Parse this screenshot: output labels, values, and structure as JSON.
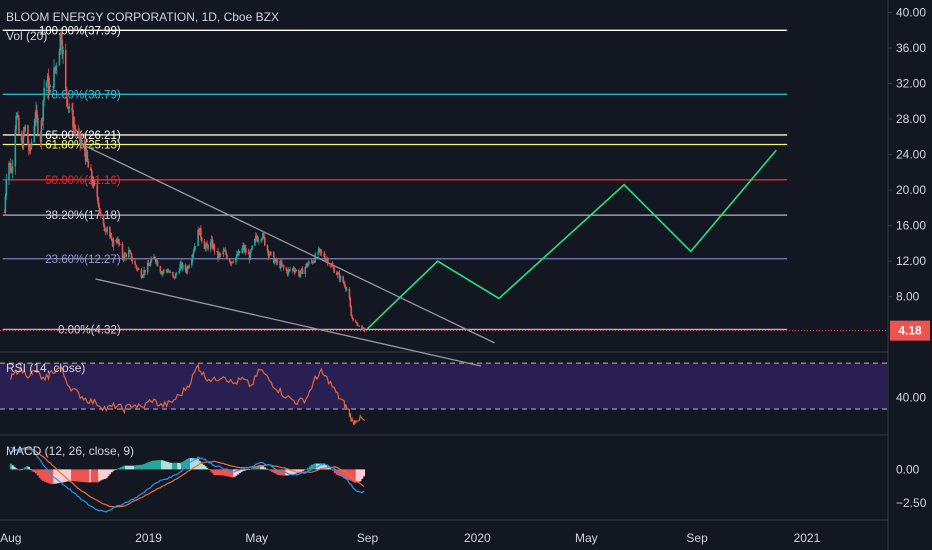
{
  "header": {
    "title": "BLOOM ENERGY CORPORATION, 1D, Cboe BZX",
    "volume_label": "Vol (20)"
  },
  "colors": {
    "background": "#131722",
    "grid": "#363a45",
    "axis_text": "#d1d4dc",
    "up": "#26a69a",
    "down": "#ef5350",
    "projection": "#26e07f",
    "trendline": "#9598a1",
    "price_tag": "#ef5350",
    "rsi_band": "#2a1f52",
    "rsi_line": "#e0683a",
    "macd_line": "#2196f3",
    "signal_line": "#ef6c3a"
  },
  "chart_data": [
    {
      "type": "candlestick",
      "panel": "price",
      "y_axis_ticks": [
        "40.00",
        "36.00",
        "32.00",
        "28.00",
        "24.00",
        "20.00",
        "16.00",
        "12.00",
        "8.00"
      ],
      "y_ticks_values": [
        40,
        36,
        32,
        28,
        24,
        20,
        16,
        12,
        8
      ],
      "ylim": [
        2.0,
        40.5
      ],
      "x_axis_ticks": [
        {
          "label": "Aug",
          "date": "2018-08-01"
        },
        {
          "label": "2019",
          "date": "2019-01-01"
        },
        {
          "label": "May",
          "date": "2019-05-01"
        },
        {
          "label": "Sep",
          "date": "2019-09-01"
        },
        {
          "label": "2020",
          "date": "2020-01-01"
        },
        {
          "label": "May",
          "date": "2020-05-01"
        },
        {
          "label": "Sep",
          "date": "2020-09-01"
        },
        {
          "label": "2021",
          "date": "2021-01-01"
        }
      ],
      "xlim": [
        "2018-07-20",
        "2021-04-01"
      ],
      "last_price": "4.18",
      "last_price_value": 4.18,
      "price_path": [
        [
          "2018-07-25",
          17.5
        ],
        [
          "2018-07-28",
          24.0
        ],
        [
          "2018-08-02",
          22.0
        ],
        [
          "2018-08-07",
          29.0
        ],
        [
          "2018-08-12",
          24.5
        ],
        [
          "2018-08-17",
          27.0
        ],
        [
          "2018-08-22",
          24.0
        ],
        [
          "2018-08-28",
          28.5
        ],
        [
          "2018-09-03",
          26.0
        ],
        [
          "2018-09-08",
          33.0
        ],
        [
          "2018-09-14",
          31.0
        ],
        [
          "2018-09-20",
          34.0
        ],
        [
          "2018-09-26",
          37.99
        ],
        [
          "2018-10-01",
          31.0
        ],
        [
          "2018-10-06",
          29.0
        ],
        [
          "2018-10-11",
          27.0
        ],
        [
          "2018-10-16",
          25.5
        ],
        [
          "2018-10-21",
          25.0
        ],
        [
          "2018-10-26",
          22.5
        ],
        [
          "2018-11-01",
          20.5
        ],
        [
          "2018-11-06",
          19.0
        ],
        [
          "2018-11-11",
          15.5
        ],
        [
          "2018-11-16",
          16.0
        ],
        [
          "2018-11-21",
          14.0
        ],
        [
          "2018-11-27",
          14.5
        ],
        [
          "2018-12-03",
          12.5
        ],
        [
          "2018-12-10",
          13.0
        ],
        [
          "2018-12-17",
          11.5
        ],
        [
          "2018-12-24",
          10.5
        ],
        [
          "2019-01-01",
          11.5
        ],
        [
          "2019-01-08",
          12.5
        ],
        [
          "2019-01-15",
          10.8
        ],
        [
          "2019-01-22",
          11.0
        ],
        [
          "2019-01-29",
          10.0
        ],
        [
          "2019-02-05",
          11.5
        ],
        [
          "2019-02-12",
          11.0
        ],
        [
          "2019-02-19",
          13.0
        ],
        [
          "2019-02-26",
          15.5
        ],
        [
          "2019-03-05",
          13.5
        ],
        [
          "2019-03-12",
          14.0
        ],
        [
          "2019-03-19",
          12.5
        ],
        [
          "2019-03-26",
          13.0
        ],
        [
          "2019-04-02",
          12.0
        ],
        [
          "2019-04-09",
          12.5
        ],
        [
          "2019-04-16",
          13.5
        ],
        [
          "2019-04-23",
          12.5
        ],
        [
          "2019-04-30",
          14.5
        ],
        [
          "2019-05-07",
          15.0
        ],
        [
          "2019-05-14",
          13.0
        ],
        [
          "2019-05-21",
          12.0
        ],
        [
          "2019-05-28",
          11.5
        ],
        [
          "2019-06-04",
          10.8
        ],
        [
          "2019-06-11",
          11.2
        ],
        [
          "2019-06-18",
          10.5
        ],
        [
          "2019-06-25",
          11.5
        ],
        [
          "2019-07-02",
          12.0
        ],
        [
          "2019-07-09",
          13.0
        ],
        [
          "2019-07-16",
          12.5
        ],
        [
          "2019-07-23",
          11.5
        ],
        [
          "2019-07-30",
          10.5
        ],
        [
          "2019-08-06",
          9.5
        ],
        [
          "2019-08-11",
          8.5
        ],
        [
          "2019-08-14",
          5.8
        ],
        [
          "2019-08-19",
          5.0
        ],
        [
          "2019-08-24",
          4.6
        ],
        [
          "2019-08-29",
          4.18
        ]
      ],
      "fibonacci_levels": [
        {
          "label": "100.00%(37.99)",
          "value": 37.99,
          "color": "#ffffff",
          "label_color": "#ffffff"
        },
        {
          "label": "78.60%(30.79)",
          "value": 30.79,
          "color": "#26c6da",
          "label_color": "#26c6da"
        },
        {
          "label": "65.00%(26.21)",
          "value": 26.21,
          "color": "#f7f5cf",
          "label_color": "#ffffff"
        },
        {
          "label": "61.80%(25.13)",
          "value": 25.13,
          "color": "#f5f576",
          "label_color": "#f5f576"
        },
        {
          "label": "50.00%(21.16)",
          "value": 21.16,
          "color": "#ef2b2b",
          "label_color": "#ef2b2b"
        },
        {
          "label": "38.20%(17.18)",
          "value": 17.18,
          "color": "#b2b5be",
          "label_color": "#d1d4dc"
        },
        {
          "label": "23.60%(12.27)",
          "value": 12.27,
          "color": "#7e7fb8",
          "label_color": "#9598c8"
        },
        {
          "label": "0.00%(4.32)",
          "value": 4.32,
          "color": "#b2b5be",
          "label_color": "#d1d4dc"
        }
      ],
      "fib_start_date": "2018-07-23",
      "fib_end_date": "2020-12-10",
      "trendlines": [
        {
          "from": [
            "2018-10-18",
            25.2
          ],
          "to": [
            "2020-01-20",
            2.8
          ]
        },
        {
          "from": [
            "2018-11-03",
            10.0
          ],
          "to": [
            "2020-01-05",
            0.2
          ]
        }
      ],
      "projection_path": [
        [
          "2019-09-01",
          4.4
        ],
        [
          "2019-11-18",
          12.0
        ],
        [
          "2020-01-25",
          7.8
        ],
        [
          "2020-06-12",
          20.6
        ],
        [
          "2020-08-25",
          13.1
        ],
        [
          "2020-11-28",
          24.5
        ]
      ]
    },
    {
      "type": "line",
      "panel": "rsi",
      "title": "RSI (14, close)",
      "y_axis_ticks": [
        "40.00"
      ],
      "y_ticks_values": [
        40
      ],
      "band": [
        30,
        70
      ],
      "ylim": [
        10,
        78
      ],
      "series": [
        {
          "values": [
            [
              "2018-08-01",
              56
            ],
            [
              "2018-08-10",
              65
            ],
            [
              "2018-08-20",
              60
            ],
            [
              "2018-08-30",
              63
            ],
            [
              "2018-09-08",
              54
            ],
            [
              "2018-09-15",
              62
            ],
            [
              "2018-09-26",
              66
            ],
            [
              "2018-10-05",
              50
            ],
            [
              "2018-10-15",
              43
            ],
            [
              "2018-10-25",
              38
            ],
            [
              "2018-11-05",
              35
            ],
            [
              "2018-11-15",
              30
            ],
            [
              "2018-11-25",
              33
            ],
            [
              "2018-12-05",
              30
            ],
            [
              "2018-12-15",
              34
            ],
            [
              "2018-12-25",
              31
            ],
            [
              "2019-01-05",
              38
            ],
            [
              "2019-01-15",
              33
            ],
            [
              "2019-01-25",
              35
            ],
            [
              "2019-02-05",
              42
            ],
            [
              "2019-02-15",
              52
            ],
            [
              "2019-02-25",
              68
            ],
            [
              "2019-03-05",
              58
            ],
            [
              "2019-03-15",
              55
            ],
            [
              "2019-03-25",
              60
            ],
            [
              "2019-04-05",
              52
            ],
            [
              "2019-04-15",
              56
            ],
            [
              "2019-04-25",
              50
            ],
            [
              "2019-05-05",
              65
            ],
            [
              "2019-05-15",
              55
            ],
            [
              "2019-05-25",
              47
            ],
            [
              "2019-06-05",
              40
            ],
            [
              "2019-06-15",
              36
            ],
            [
              "2019-06-25",
              39
            ],
            [
              "2019-07-05",
              56
            ],
            [
              "2019-07-12",
              62
            ],
            [
              "2019-07-20",
              55
            ],
            [
              "2019-07-30",
              42
            ],
            [
              "2019-08-06",
              35
            ],
            [
              "2019-08-12",
              28
            ],
            [
              "2019-08-16",
              18
            ],
            [
              "2019-08-22",
              22
            ],
            [
              "2019-08-29",
              20
            ]
          ]
        }
      ]
    },
    {
      "type": "bar",
      "panel": "macd",
      "title": "MACD (12, 26, close, 9)",
      "y_axis_ticks": [
        "0.00",
        "−2.50"
      ],
      "y_ticks_values": [
        0,
        -2.5
      ],
      "ylim": [
        -3.6,
        2.4
      ],
      "series": [
        {
          "name": "",
          "kind": "macd",
          "values": [
            [
              "2018-08-01",
              1.6
            ],
            [
              "2018-08-10",
              1.4
            ],
            [
              "2018-08-20",
              1.7
            ],
            [
              "2018-08-28",
              1.2
            ],
            [
              "2018-09-05",
              0.4
            ],
            [
              "2018-09-15",
              -0.4
            ],
            [
              "2018-09-26",
              -1.0
            ],
            [
              "2018-10-06",
              -1.5
            ],
            [
              "2018-10-16",
              -2.1
            ],
            [
              "2018-10-26",
              -2.6
            ],
            [
              "2018-11-05",
              -3.0
            ],
            [
              "2018-11-15",
              -3.1
            ],
            [
              "2018-11-25",
              -2.8
            ],
            [
              "2018-12-05",
              -2.5
            ],
            [
              "2018-12-15",
              -2.2
            ],
            [
              "2018-12-25",
              -1.8
            ],
            [
              "2019-01-05",
              -1.2
            ],
            [
              "2019-01-15",
              -0.8
            ],
            [
              "2019-01-25",
              -0.6
            ],
            [
              "2019-02-05",
              -0.2
            ],
            [
              "2019-02-15",
              0.5
            ],
            [
              "2019-02-25",
              0.9
            ],
            [
              "2019-03-05",
              0.7
            ],
            [
              "2019-03-15",
              0.3
            ],
            [
              "2019-03-25",
              0.1
            ],
            [
              "2019-04-05",
              -0.2
            ],
            [
              "2019-04-15",
              0.0
            ],
            [
              "2019-04-25",
              0.2
            ],
            [
              "2019-05-05",
              0.5
            ],
            [
              "2019-05-15",
              0.3
            ],
            [
              "2019-05-25",
              -0.1
            ],
            [
              "2019-06-05",
              -0.3
            ],
            [
              "2019-06-15",
              -0.4
            ],
            [
              "2019-06-25",
              -0.2
            ],
            [
              "2019-07-05",
              0.2
            ],
            [
              "2019-07-15",
              0.4
            ],
            [
              "2019-07-25",
              0.1
            ],
            [
              "2019-08-05",
              -0.5
            ],
            [
              "2019-08-12",
              -1.0
            ],
            [
              "2019-08-18",
              -1.5
            ],
            [
              "2019-08-24",
              -1.7
            ],
            [
              "2019-08-29",
              -1.6
            ]
          ]
        },
        {
          "name": "",
          "kind": "signal",
          "values": [
            [
              "2018-08-01",
              1.3
            ],
            [
              "2018-08-12",
              1.5
            ],
            [
              "2018-08-25",
              1.5
            ],
            [
              "2018-09-05",
              1.0
            ],
            [
              "2018-09-18",
              0.2
            ],
            [
              "2018-10-01",
              -0.6
            ],
            [
              "2018-10-15",
              -1.4
            ],
            [
              "2018-10-28",
              -2.0
            ],
            [
              "2018-11-10",
              -2.5
            ],
            [
              "2018-11-22",
              -2.8
            ],
            [
              "2018-12-05",
              -2.7
            ],
            [
              "2018-12-18",
              -2.3
            ],
            [
              "2019-01-01",
              -1.8
            ],
            [
              "2019-01-15",
              -1.3
            ],
            [
              "2019-02-01",
              -0.7
            ],
            [
              "2019-02-15",
              -0.1
            ],
            [
              "2019-03-01",
              0.5
            ],
            [
              "2019-03-15",
              0.6
            ],
            [
              "2019-04-01",
              0.3
            ],
            [
              "2019-04-15",
              0.1
            ],
            [
              "2019-05-01",
              0.2
            ],
            [
              "2019-05-15",
              0.35
            ],
            [
              "2019-06-01",
              0.1
            ],
            [
              "2019-06-15",
              -0.2
            ],
            [
              "2019-07-01",
              -0.2
            ],
            [
              "2019-07-15",
              0.1
            ],
            [
              "2019-07-28",
              0.2
            ],
            [
              "2019-08-08",
              -0.2
            ],
            [
              "2019-08-18",
              -0.8
            ],
            [
              "2019-08-29",
              -1.3
            ]
          ]
        }
      ]
    }
  ]
}
